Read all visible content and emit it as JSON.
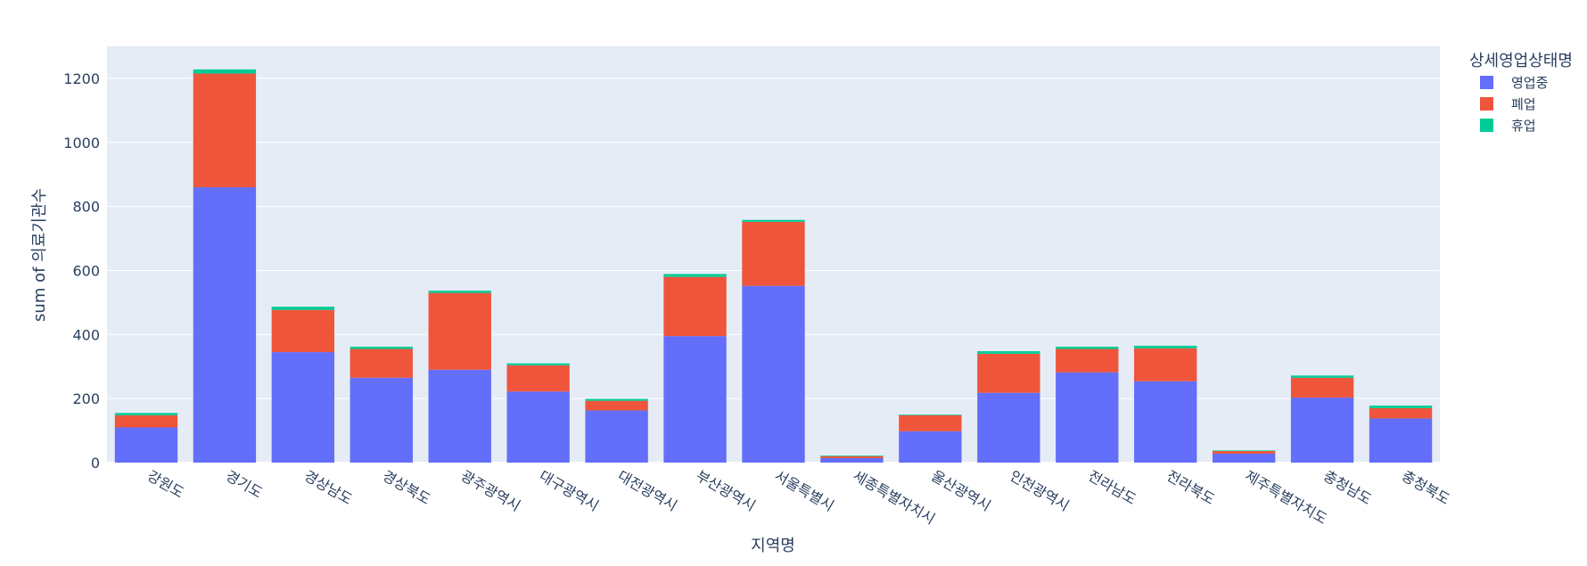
{
  "chart_data": {
    "type": "bar",
    "stacked": true,
    "title": "",
    "xlabel": "지역명",
    "ylabel": "sum of 의료기관수",
    "ylim": [
      0,
      1300
    ],
    "yticks": [
      0,
      200,
      400,
      600,
      800,
      1000,
      1200
    ],
    "grid": true,
    "legend_title": "상세영업상태명",
    "legend_position": "top-right",
    "categories": [
      "강원도",
      "경기도",
      "경상남도",
      "경상북도",
      "광주광역시",
      "대구광역시",
      "대전광역시",
      "부산광역시",
      "서울특별시",
      "세종특별자치시",
      "울산광역시",
      "인천광역시",
      "전라남도",
      "전라북도",
      "제주특별자치도",
      "충청남도",
      "충청북도"
    ],
    "series": [
      {
        "name": "영업중",
        "color": "#636efa",
        "values": [
          110,
          860,
          345,
          265,
          290,
          222,
          163,
          395,
          552,
          14,
          98,
          218,
          282,
          254,
          28,
          203,
          138
        ]
      },
      {
        "name": "폐업",
        "color": "#ef553b",
        "values": [
          38,
          355,
          132,
          90,
          240,
          82,
          30,
          185,
          200,
          6,
          50,
          122,
          73,
          103,
          8,
          62,
          32
        ]
      },
      {
        "name": "휴업",
        "color": "#00cc96",
        "values": [
          7,
          13,
          10,
          7,
          7,
          6,
          6,
          9,
          6,
          2,
          2,
          8,
          7,
          8,
          2,
          7,
          8
        ]
      }
    ]
  }
}
